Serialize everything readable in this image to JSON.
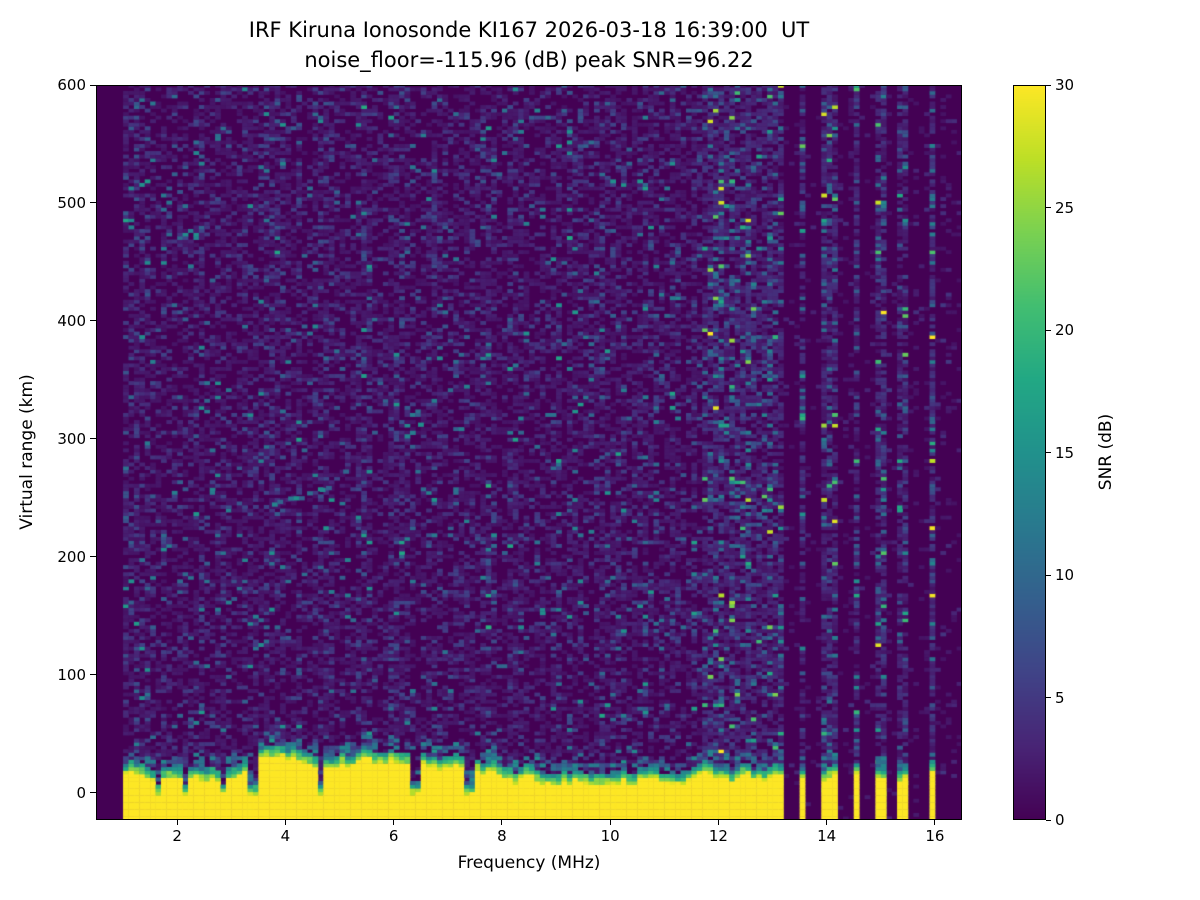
{
  "header": {
    "title_line1": "IRF Kiruna Ionosonde KI167 2026-03-18 16:39:00  UT",
    "title_line2": "noise_floor=-115.96 (dB) peak SNR=96.22"
  },
  "axes": {
    "xlabel": "Frequency (MHz)",
    "ylabel": "Virtual range (km)",
    "x_ticks": [
      2,
      4,
      6,
      8,
      10,
      12,
      14,
      16
    ],
    "y_ticks": [
      0,
      100,
      200,
      300,
      400,
      500,
      600
    ]
  },
  "colorbar": {
    "label": "SNR (dB)",
    "ticks": [
      0,
      5,
      10,
      15,
      20,
      25,
      30
    ],
    "min": 0,
    "max": 30,
    "colormap": "viridis"
  },
  "chart_data": {
    "type": "heatmap",
    "title": "IRF Kiruna Ionosonde KI167 2026-03-18 16:39:00  UT",
    "subtitle": "noise_floor=-115.96 (dB) peak SNR=96.22",
    "xlabel": "Frequency (MHz)",
    "ylabel": "Virtual range (km)",
    "zlabel": "SNR (dB)",
    "x_range_mhz": [
      0.5,
      16.5
    ],
    "y_range_km": [
      -23,
      600
    ],
    "data_start_mhz": 1.0,
    "snr_range_db": [
      0,
      30
    ],
    "noise_floor_db": -115.96,
    "peak_snr_db": 96.22,
    "features": {
      "ground_clutter_band": {
        "y_km": [
          -20,
          30
        ],
        "snr_db": 30,
        "x_end_mhz": 11.65,
        "notch_freqs_mhz": [
          1.6,
          2.1,
          2.8,
          3.35,
          4.6,
          6.35,
          7.35
        ]
      },
      "echo_trace_segments": [
        {
          "f_mhz": [
            3.75,
            4.35
          ],
          "range_km": [
            244,
            252
          ]
        },
        {
          "f_mhz": [
            4.4,
            4.75
          ],
          "range_km": [
            253,
            259
          ]
        },
        {
          "f_mhz": [
            4.95,
            5.3
          ],
          "range_km": [
            268,
            282
          ]
        },
        {
          "f_mhz": [
            6.2,
            6.4
          ],
          "range_km": [
            303,
            309
          ]
        },
        {
          "f_mhz": [
            6.45,
            6.6
          ],
          "range_km": [
            313,
            318
          ]
        }
      ],
      "rfi_columns_mhz": [
        11.7,
        11.85,
        12.0,
        12.15,
        12.3,
        12.45,
        12.6,
        12.75,
        12.9,
        13.05,
        13.5,
        13.9,
        14.05,
        14.5,
        14.95,
        15.35,
        15.9
      ],
      "quiet_region_start_mhz": 11.65
    },
    "render": {
      "freq_bin_mhz": 0.1,
      "range_bin_km": 3,
      "seed": 167
    }
  },
  "colors": {
    "background": "#ffffff",
    "axis": "#000000",
    "cmap_low": "#440154",
    "cmap_high": "#fde725"
  }
}
